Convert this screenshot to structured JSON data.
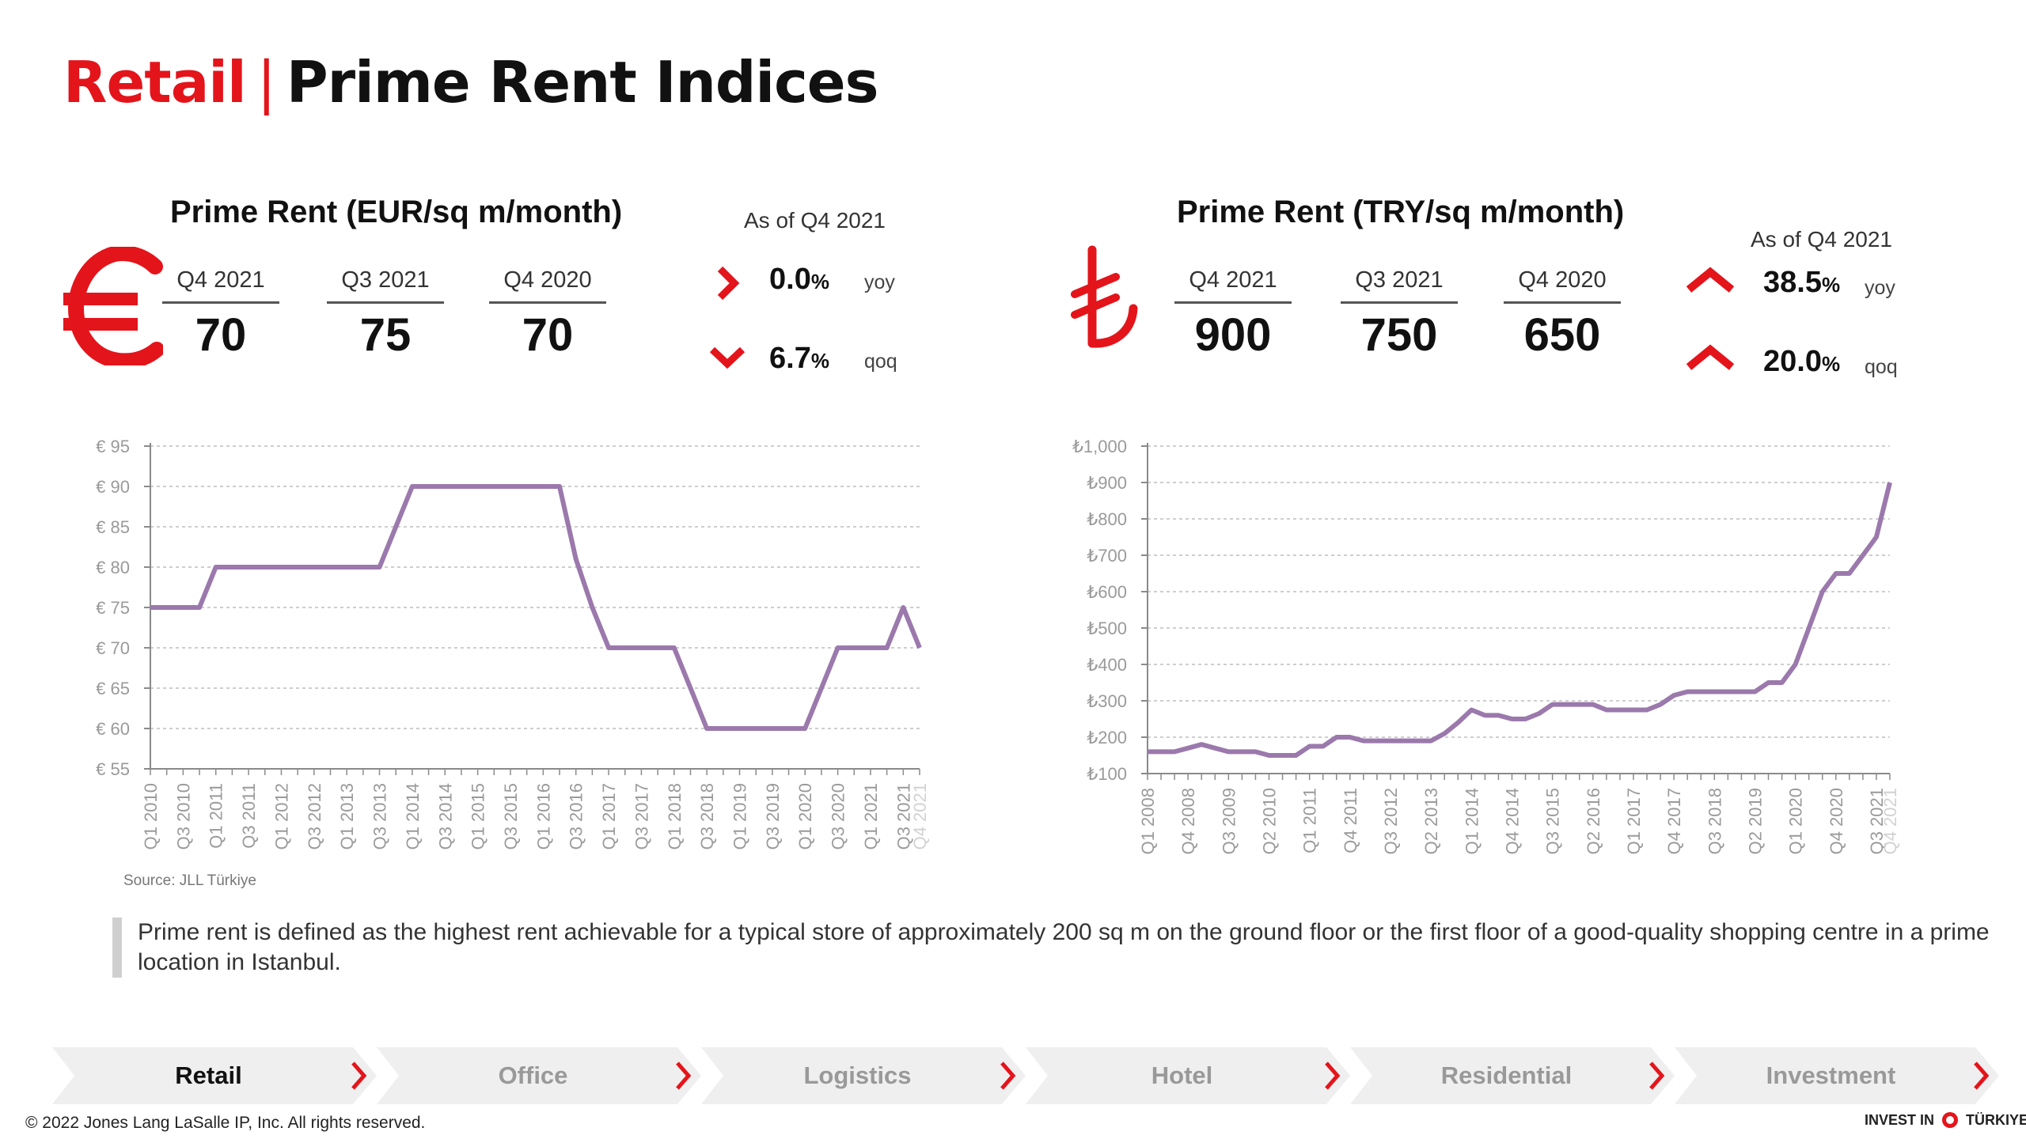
{
  "page_title": {
    "red": "Retail",
    "separator": "|",
    "rest": "Prime Rent Indices"
  },
  "left": {
    "title": "Prime Rent (EUR/sq m/month)",
    "as_of": "As of Q4 2021",
    "currency_icon": "euro-sign",
    "quarters": [
      {
        "label": "Q4 2021",
        "value": "70"
      },
      {
        "label": "Q3 2021",
        "value": "75"
      },
      {
        "label": "Q4 2020",
        "value": "70"
      }
    ],
    "changes": [
      {
        "value": "0.0",
        "unit": "%",
        "tag": "yoy",
        "direction": "flat"
      },
      {
        "value": "6.7",
        "unit": "%",
        "tag": "qoq",
        "direction": "down"
      }
    ]
  },
  "right": {
    "title": "Prime Rent (TRY/sq m/month)",
    "as_of": "As of Q4 2021",
    "currency_icon": "lira-sign",
    "quarters": [
      {
        "label": "Q4 2021",
        "value": "900"
      },
      {
        "label": "Q3 2021",
        "value": "750"
      },
      {
        "label": "Q4 2020",
        "value": "650"
      }
    ],
    "changes": [
      {
        "value": "38.5",
        "unit": "%",
        "tag": "yoy",
        "direction": "up"
      },
      {
        "value": "20.0",
        "unit": "%",
        "tag": "qoq",
        "direction": "up"
      }
    ]
  },
  "chart_data": [
    {
      "type": "line",
      "series_color": "#9b79ac",
      "y_prefix": "€ ",
      "ylim": [
        55,
        95
      ],
      "y_ticks": [
        55,
        60,
        65,
        70,
        75,
        80,
        85,
        90,
        95
      ],
      "x": [
        "Q1 2010",
        "Q2 2010",
        "Q3 2010",
        "Q4 2010",
        "Q1 2011",
        "Q2 2011",
        "Q3 2011",
        "Q4 2011",
        "Q1 2012",
        "Q2 2012",
        "Q3 2012",
        "Q4 2012",
        "Q1 2013",
        "Q2 2013",
        "Q3 2013",
        "Q4 2013",
        "Q1 2014",
        "Q2 2014",
        "Q3 2014",
        "Q4 2014",
        "Q1 2015",
        "Q2 2015",
        "Q3 2015",
        "Q4 2015",
        "Q1 2016",
        "Q2 2016",
        "Q3 2016",
        "Q4 2016",
        "Q1 2017",
        "Q2 2017",
        "Q3 2017",
        "Q4 2017",
        "Q1 2018",
        "Q2 2018",
        "Q3 2018",
        "Q4 2018",
        "Q1 2019",
        "Q2 2019",
        "Q3 2019",
        "Q4 2019",
        "Q1 2020",
        "Q2 2020",
        "Q3 2020",
        "Q4 2020",
        "Q1 2021",
        "Q2 2021",
        "Q3 2021",
        "Q4 2021"
      ],
      "x_tick_labels": [
        "Q1 2010",
        "Q3 2010",
        "Q1 2011",
        "Q3 2011",
        "Q1 2012",
        "Q3 2012",
        "Q1 2013",
        "Q3 2013",
        "Q1 2014",
        "Q3 2014",
        "Q1 2015",
        "Q3 2015",
        "Q1 2016",
        "Q3 2016",
        "Q1 2017",
        "Q3 2017",
        "Q1 2018",
        "Q3 2018",
        "Q1 2019",
        "Q3 2019",
        "Q1 2020",
        "Q3 2020",
        "Q1 2021",
        "Q3 2021",
        "Q4 2021"
      ],
      "values": [
        75,
        75,
        75,
        75,
        80,
        80,
        80,
        80,
        80,
        80,
        80,
        80,
        80,
        80,
        80,
        85,
        90,
        90,
        90,
        90,
        90,
        90,
        90,
        90,
        90,
        90,
        81,
        75,
        70,
        70,
        70,
        70,
        70,
        65,
        60,
        60,
        60,
        60,
        60,
        60,
        60,
        65,
        70,
        70,
        70,
        70,
        75,
        70
      ],
      "source": "Source: JLL Türkiye"
    },
    {
      "type": "line",
      "series_color": "#9b79ac",
      "y_prefix": "₺",
      "ylim": [
        100,
        1000
      ],
      "y_ticks": [
        100,
        200,
        300,
        400,
        500,
        600,
        700,
        800,
        900,
        1000
      ],
      "y_tick_labels": [
        "₺100",
        "₺200",
        "₺300",
        "₺400",
        "₺500",
        "₺600",
        "₺700",
        "₺800",
        "₺900",
        "₺1,000"
      ],
      "x": [
        "Q1 2008",
        "Q2 2008",
        "Q3 2008",
        "Q4 2008",
        "Q1 2009",
        "Q2 2009",
        "Q3 2009",
        "Q4 2009",
        "Q1 2010",
        "Q2 2010",
        "Q3 2010",
        "Q4 2010",
        "Q1 2011",
        "Q2 2011",
        "Q3 2011",
        "Q4 2011",
        "Q1 2012",
        "Q2 2012",
        "Q3 2012",
        "Q4 2012",
        "Q1 2013",
        "Q2 2013",
        "Q3 2013",
        "Q4 2013",
        "Q1 2014",
        "Q2 2014",
        "Q3 2014",
        "Q4 2014",
        "Q1 2015",
        "Q2 2015",
        "Q3 2015",
        "Q4 2015",
        "Q1 2016",
        "Q2 2016",
        "Q3 2016",
        "Q4 2016",
        "Q1 2017",
        "Q2 2017",
        "Q3 2017",
        "Q4 2017",
        "Q1 2018",
        "Q2 2018",
        "Q3 2018",
        "Q4 2018",
        "Q1 2019",
        "Q2 2019",
        "Q3 2019",
        "Q4 2019",
        "Q1 2020",
        "Q2 2020",
        "Q3 2020",
        "Q4 2020",
        "Q1 2021",
        "Q2 2021",
        "Q3 2021",
        "Q4 2021"
      ],
      "x_tick_labels": [
        "Q1 2008",
        "Q4 2008",
        "Q3 2009",
        "Q2 2010",
        "Q1 2011",
        "Q4 2011",
        "Q3 2012",
        "Q2 2013",
        "Q1 2014",
        "Q4 2014",
        "Q3 2015",
        "Q2 2016",
        "Q1 2017",
        "Q4 2017",
        "Q3 2018",
        "Q2 2019",
        "Q1 2020",
        "Q4 2020",
        "Q3 2021",
        "Q4 2021"
      ],
      "values": [
        160,
        160,
        160,
        170,
        180,
        170,
        160,
        160,
        160,
        150,
        150,
        150,
        175,
        175,
        200,
        200,
        190,
        190,
        190,
        190,
        190,
        190,
        210,
        240,
        275,
        260,
        260,
        250,
        250,
        265,
        290,
        290,
        290,
        290,
        275,
        275,
        275,
        275,
        290,
        315,
        325,
        325,
        325,
        325,
        325,
        325,
        350,
        350,
        400,
        500,
        600,
        650,
        650,
        700,
        750,
        900
      ]
    }
  ],
  "note": "Prime rent is defined as the highest rent achievable for a typical store of approximately 200 sq m on the ground floor or the first floor of a good-quality shopping centre in a prime location in Istanbul.",
  "nav": [
    {
      "label": "Retail",
      "active": true
    },
    {
      "label": "Office",
      "active": false
    },
    {
      "label": "Logistics",
      "active": false
    },
    {
      "label": "Hotel",
      "active": false
    },
    {
      "label": "Residential",
      "active": false
    },
    {
      "label": "Investment",
      "active": false
    }
  ],
  "footer": "© 2022 Jones Lang LaSalle IP, Inc. All rights reserved.",
  "logo": {
    "left": "INVEST IN",
    "right": "TÜRKIYE"
  },
  "colors": {
    "accent": "#e4141b",
    "line": "#9b79ac",
    "grid": "#bdbdbd",
    "axis_text": "#9a9a9a",
    "nav_bg": "#efefef"
  }
}
